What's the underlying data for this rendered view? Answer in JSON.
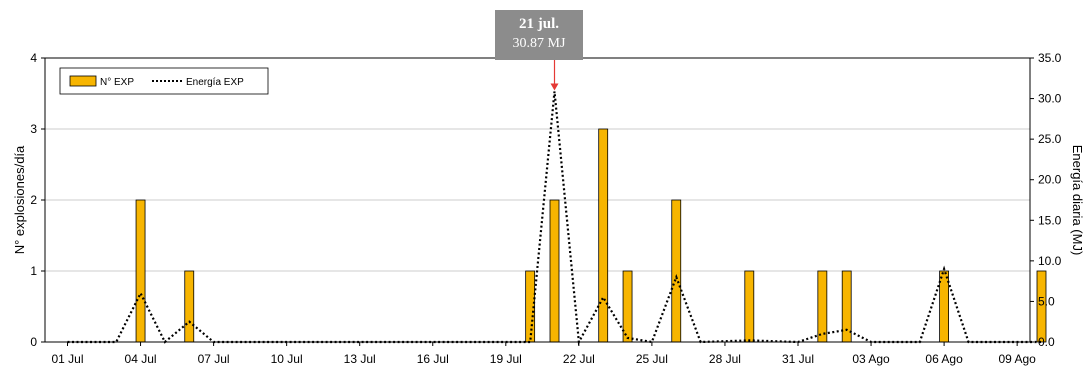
{
  "chart_data": {
    "type": "bar",
    "x_tick_labels": [
      "01 Jul",
      "04 Jul",
      "07 Jul",
      "10 Jul",
      "13 Jul",
      "16 Jul",
      "19 Jul",
      "22 Jul",
      "25 Jul",
      "28 Jul",
      "31 Jul",
      "03 Ago",
      "06 Ago",
      "09 Ago"
    ],
    "ylabel_left": "N° explosiones/día",
    "ylabel_right": "Energía diaria (MJ)",
    "ylim_left": [
      0,
      4
    ],
    "ylim_right": [
      0,
      35
    ],
    "yticks_left": [
      "0",
      "1",
      "2",
      "3",
      "4"
    ],
    "yticks_right": [
      "0.0",
      "5.0",
      "10.0",
      "15.0",
      "20.0",
      "25.0",
      "30.0",
      "35.0"
    ],
    "grid": true,
    "legend_position": "top-left",
    "series": [
      {
        "name": "N° EXP",
        "kind": "bar",
        "axis": "left",
        "color": "#f7b500",
        "points": [
          {
            "day": 4,
            "value": 2
          },
          {
            "day": 6,
            "value": 1
          },
          {
            "day": 20,
            "value": 1
          },
          {
            "day": 21,
            "value": 2
          },
          {
            "day": 23,
            "value": 3
          },
          {
            "day": 24,
            "value": 1
          },
          {
            "day": 26,
            "value": 2
          },
          {
            "day": 29,
            "value": 1
          },
          {
            "day": 32,
            "value": 1
          },
          {
            "day": 33,
            "value": 1
          },
          {
            "day": 37,
            "value": 1
          },
          {
            "day": 41,
            "value": 1
          }
        ]
      },
      {
        "name": "Energía EXP",
        "kind": "line",
        "axis": "right",
        "style": "dotted",
        "color": "#000000",
        "points": [
          {
            "day": 1,
            "value": 0
          },
          {
            "day": 2,
            "value": 0
          },
          {
            "day": 3,
            "value": 0
          },
          {
            "day": 4,
            "value": 6.0
          },
          {
            "day": 5,
            "value": 0
          },
          {
            "day": 6,
            "value": 2.5
          },
          {
            "day": 7,
            "value": 0
          },
          {
            "day": 19,
            "value": 0
          },
          {
            "day": 20,
            "value": 0
          },
          {
            "day": 21,
            "value": 30.87
          },
          {
            "day": 22,
            "value": 0
          },
          {
            "day": 23,
            "value": 5.5
          },
          {
            "day": 24,
            "value": 0.5
          },
          {
            "day": 25,
            "value": 0
          },
          {
            "day": 26,
            "value": 8.0
          },
          {
            "day": 27,
            "value": 0
          },
          {
            "day": 29,
            "value": 0.2
          },
          {
            "day": 31,
            "value": 0
          },
          {
            "day": 32,
            "value": 1.0
          },
          {
            "day": 33,
            "value": 1.5
          },
          {
            "day": 34,
            "value": 0
          },
          {
            "day": 36,
            "value": 0
          },
          {
            "day": 37,
            "value": 9.0
          },
          {
            "day": 38,
            "value": 0
          },
          {
            "day": 41,
            "value": 0
          }
        ]
      }
    ],
    "annotation": {
      "date": "21 jul.",
      "value_text": "30.87 MJ",
      "day": 21
    }
  }
}
